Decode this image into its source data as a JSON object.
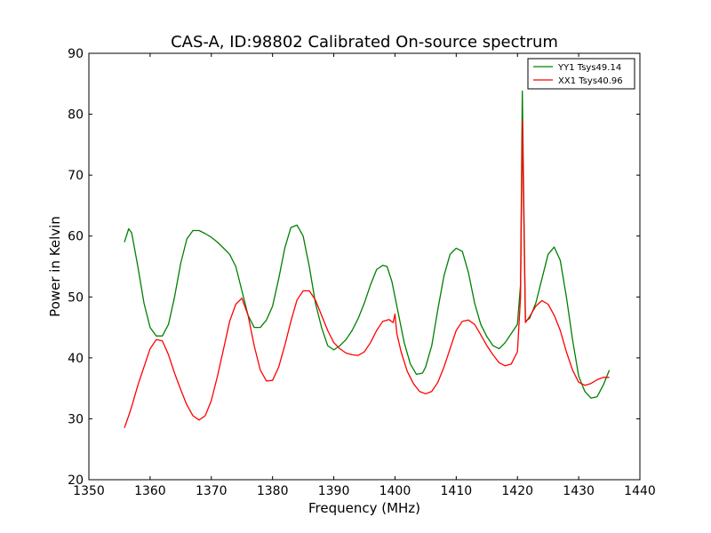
{
  "chart_data": {
    "type": "line",
    "title": "CAS-A, ID:98802 Calibrated On-source spectrum",
    "xlabel": "Frequency (MHz)",
    "ylabel": "Power in Kelvin",
    "xlim": [
      1350,
      1440
    ],
    "ylim": [
      20,
      90
    ],
    "xticks": [
      1350,
      1360,
      1370,
      1380,
      1390,
      1400,
      1410,
      1420,
      1430,
      1440
    ],
    "yticks": [
      20,
      30,
      40,
      50,
      60,
      70,
      80,
      90
    ],
    "grid": false,
    "legend_position": "top-right",
    "series": [
      {
        "name": "YY1 Tsys49.14",
        "color": "#008000",
        "x": [
          1355.8,
          1356.5,
          1357.0,
          1358.0,
          1359.0,
          1360.0,
          1361.0,
          1362.0,
          1363.0,
          1364.0,
          1365.0,
          1366.0,
          1367.0,
          1368.0,
          1369.0,
          1370.0,
          1371.0,
          1372.0,
          1373.0,
          1374.0,
          1375.0,
          1376.0,
          1377.0,
          1378.0,
          1379.0,
          1380.0,
          1381.0,
          1382.0,
          1383.0,
          1384.0,
          1385.0,
          1386.0,
          1387.0,
          1388.0,
          1389.0,
          1390.0,
          1391.0,
          1392.0,
          1393.0,
          1394.0,
          1395.0,
          1396.0,
          1397.0,
          1398.0,
          1398.7,
          1399.5,
          1400.5,
          1401.5,
          1402.5,
          1403.5,
          1404.5,
          1405.0,
          1406.0,
          1407.0,
          1408.0,
          1409.0,
          1410.0,
          1411.0,
          1412.0,
          1413.0,
          1414.0,
          1415.0,
          1416.0,
          1417.0,
          1418.0,
          1419.0,
          1420.0,
          1420.5,
          1420.8,
          1421.3,
          1422.0,
          1423.0,
          1424.0,
          1425.0,
          1426.0,
          1427.0,
          1428.0,
          1429.0,
          1430.0,
          1431.0,
          1432.0,
          1433.0,
          1434.0,
          1435.0
        ],
        "y": [
          59.0,
          61.2,
          60.5,
          55.0,
          49.0,
          45.0,
          43.6,
          43.6,
          45.5,
          50.0,
          55.5,
          59.5,
          60.9,
          60.9,
          60.4,
          59.8,
          59.0,
          58.0,
          57.0,
          55.0,
          51.0,
          47.0,
          45.0,
          45.0,
          46.2,
          48.5,
          53.0,
          58.0,
          61.4,
          61.8,
          60.0,
          55.0,
          49.0,
          45.0,
          42.0,
          41.3,
          42.0,
          43.0,
          44.5,
          46.5,
          49.0,
          52.0,
          54.5,
          55.2,
          55.0,
          52.5,
          47.5,
          42.5,
          39.0,
          37.3,
          37.5,
          38.5,
          42.0,
          48.0,
          53.5,
          57.0,
          58.0,
          57.5,
          54.0,
          49.0,
          45.5,
          43.5,
          42.0,
          41.5,
          42.5,
          44.0,
          45.5,
          52.0,
          83.8,
          46.0,
          46.5,
          49.0,
          53.0,
          57.0,
          58.2,
          56.0,
          50.0,
          43.0,
          37.0,
          34.5,
          33.4,
          33.6,
          35.5,
          38.0
        ]
      },
      {
        "name": "XX1 Tsys40.96",
        "color": "#ff0000",
        "x": [
          1355.8,
          1356.5,
          1357.0,
          1358.0,
          1359.0,
          1360.0,
          1361.0,
          1362.0,
          1363.0,
          1364.0,
          1365.0,
          1366.0,
          1367.0,
          1368.0,
          1369.0,
          1370.0,
          1371.0,
          1372.0,
          1373.0,
          1374.0,
          1375.0,
          1376.0,
          1377.0,
          1378.0,
          1379.0,
          1380.0,
          1381.0,
          1382.0,
          1383.0,
          1384.0,
          1385.0,
          1386.0,
          1387.0,
          1388.0,
          1389.0,
          1390.0,
          1391.0,
          1392.0,
          1393.0,
          1394.0,
          1395.0,
          1396.0,
          1397.0,
          1398.0,
          1399.0,
          1399.7,
          1400.0,
          1400.3,
          1401.0,
          1402.0,
          1403.0,
          1404.0,
          1405.0,
          1406.0,
          1407.0,
          1408.0,
          1409.0,
          1410.0,
          1411.0,
          1412.0,
          1413.0,
          1414.0,
          1415.0,
          1416.0,
          1417.0,
          1418.0,
          1419.0,
          1420.0,
          1420.5,
          1420.8,
          1421.3,
          1422.0,
          1423.0,
          1424.0,
          1425.0,
          1426.0,
          1427.0,
          1428.0,
          1429.0,
          1430.0,
          1431.0,
          1432.0,
          1433.0,
          1434.0,
          1435.0
        ],
        "y": [
          28.5,
          30.5,
          32.0,
          35.5,
          38.5,
          41.5,
          43.0,
          42.8,
          40.5,
          37.5,
          34.8,
          32.3,
          30.5,
          29.8,
          30.5,
          33.0,
          37.0,
          41.5,
          46.0,
          48.8,
          49.8,
          47.0,
          42.0,
          38.0,
          36.2,
          36.3,
          38.5,
          42.0,
          46.0,
          49.5,
          51.0,
          51.0,
          49.5,
          47.0,
          44.5,
          42.5,
          41.5,
          40.8,
          40.5,
          40.4,
          41.0,
          42.5,
          44.5,
          46.0,
          46.3,
          45.8,
          47.2,
          44.0,
          41.0,
          37.8,
          35.8,
          34.5,
          34.1,
          34.5,
          36.0,
          38.5,
          41.5,
          44.5,
          46.0,
          46.2,
          45.5,
          43.8,
          42.0,
          40.5,
          39.2,
          38.7,
          39.0,
          41.0,
          50.0,
          79.0,
          45.8,
          46.8,
          48.5,
          49.4,
          48.8,
          47.0,
          44.5,
          41.0,
          38.0,
          36.0,
          35.5,
          35.8,
          36.4,
          36.8,
          36.8
        ]
      }
    ]
  }
}
